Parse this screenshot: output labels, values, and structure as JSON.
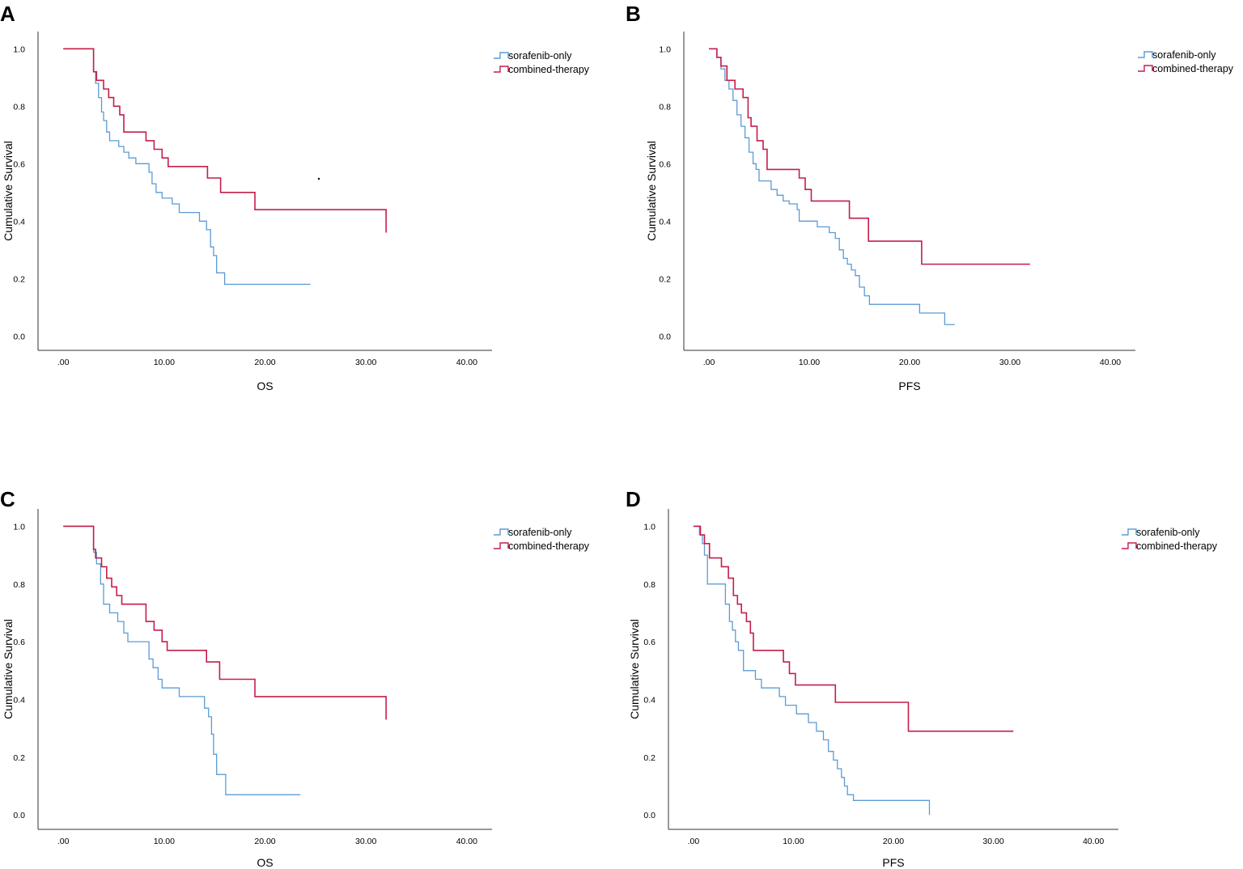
{
  "figure": {
    "panel_letters": [
      "A",
      "B",
      "C",
      "D"
    ]
  },
  "chart_data": [
    {
      "panel": "A",
      "type": "line",
      "step": true,
      "xlabel": "OS",
      "ylabel": "Cumulative Survival",
      "xlim": [
        -2.5,
        42.5
      ],
      "ylim": [
        -0.05,
        1.06
      ],
      "xticks": [
        ".00",
        "10.00",
        "20.00",
        "30.00",
        "40.00"
      ],
      "yticks": [
        "0.0",
        "0.2",
        "0.4",
        "0.6",
        "0.8",
        "1.0"
      ],
      "legend_position": "top-right",
      "series": [
        {
          "name": "sorafenib-only",
          "color": "#5b9bd5",
          "x": [
            0,
            3.0,
            3.2,
            3.5,
            3.8,
            4.0,
            4.3,
            4.6,
            5.0,
            5.5,
            6.0,
            6.5,
            7.2,
            8.5,
            8.8,
            9.2,
            9.8,
            10.8,
            11.5,
            13.5,
            14.2,
            14.6,
            14.9,
            15.2,
            16.0,
            24.5
          ],
          "y": [
            1.0,
            0.92,
            0.88,
            0.83,
            0.78,
            0.75,
            0.71,
            0.68,
            0.68,
            0.66,
            0.64,
            0.62,
            0.6,
            0.57,
            0.53,
            0.5,
            0.48,
            0.46,
            0.43,
            0.4,
            0.37,
            0.31,
            0.28,
            0.22,
            0.18,
            0.18
          ]
        },
        {
          "name": "combined-therapy",
          "color": "#c41e4a",
          "x": [
            0,
            3.0,
            3.3,
            4.0,
            4.5,
            5.0,
            5.6,
            6.0,
            8.2,
            9.0,
            9.8,
            10.4,
            14.3,
            15.6,
            19.0,
            32.0
          ],
          "y": [
            1.0,
            0.92,
            0.89,
            0.86,
            0.83,
            0.8,
            0.77,
            0.71,
            0.68,
            0.65,
            0.62,
            0.59,
            0.55,
            0.5,
            0.44,
            0.36
          ]
        }
      ]
    },
    {
      "panel": "B",
      "type": "line",
      "step": true,
      "xlabel": "PFS",
      "ylabel": "Cumulative Survival",
      "xlim": [
        -2.5,
        42.5
      ],
      "ylim": [
        -0.05,
        1.06
      ],
      "xticks": [
        ".00",
        "10.00",
        "20.00",
        "30.00",
        "40.00"
      ],
      "yticks": [
        "0.0",
        "0.2",
        "0.4",
        "0.6",
        "0.8",
        "1.0"
      ],
      "legend_position": "top-right",
      "series": [
        {
          "name": "sorafenib-only",
          "color": "#5b9bd5",
          "x": [
            0,
            0.8,
            1.2,
            1.6,
            2.0,
            2.4,
            2.8,
            3.2,
            3.6,
            4.0,
            4.4,
            4.7,
            5.0,
            6.2,
            6.8,
            7.4,
            8.0,
            8.8,
            9.0,
            10.8,
            12.0,
            12.6,
            13.0,
            13.4,
            13.8,
            14.2,
            14.6,
            15.0,
            15.5,
            16.0,
            17.0,
            21.0,
            23.5,
            24.5
          ],
          "y": [
            1.0,
            0.97,
            0.93,
            0.89,
            0.86,
            0.82,
            0.77,
            0.73,
            0.69,
            0.64,
            0.6,
            0.58,
            0.54,
            0.51,
            0.49,
            0.47,
            0.46,
            0.44,
            0.4,
            0.38,
            0.36,
            0.34,
            0.3,
            0.27,
            0.25,
            0.23,
            0.21,
            0.17,
            0.14,
            0.11,
            0.11,
            0.08,
            0.04,
            0.04
          ]
        },
        {
          "name": "combined-therapy",
          "color": "#c41e4a",
          "x": [
            0,
            0.8,
            1.2,
            1.8,
            2.6,
            3.4,
            3.9,
            4.2,
            4.8,
            5.4,
            5.8,
            9.0,
            9.6,
            10.2,
            14.0,
            15.9,
            21.2,
            32.0
          ],
          "y": [
            1.0,
            0.97,
            0.94,
            0.89,
            0.86,
            0.83,
            0.76,
            0.73,
            0.68,
            0.65,
            0.58,
            0.55,
            0.51,
            0.47,
            0.41,
            0.33,
            0.25,
            0.25
          ]
        }
      ]
    },
    {
      "panel": "C",
      "type": "line",
      "step": true,
      "xlabel": "OS",
      "ylabel": "Cumulative Survival",
      "xlim": [
        -2.5,
        42.5
      ],
      "ylim": [
        -0.05,
        1.06
      ],
      "xticks": [
        ".00",
        "10.00",
        "20.00",
        "30.00",
        "40.00"
      ],
      "yticks": [
        "0.0",
        "0.2",
        "0.4",
        "0.6",
        "0.8",
        "1.0"
      ],
      "legend_position": "top-right",
      "series": [
        {
          "name": "sorafenib-only",
          "color": "#5b9bd5",
          "x": [
            0,
            3.0,
            3.3,
            3.7,
            4.0,
            4.6,
            5.4,
            6.0,
            6.4,
            8.5,
            8.9,
            9.4,
            9.8,
            11.5,
            14.0,
            14.4,
            14.7,
            14.9,
            15.2,
            16.1,
            23.5
          ],
          "y": [
            1.0,
            0.91,
            0.87,
            0.8,
            0.73,
            0.7,
            0.67,
            0.63,
            0.6,
            0.54,
            0.51,
            0.47,
            0.44,
            0.41,
            0.37,
            0.34,
            0.28,
            0.21,
            0.14,
            0.07,
            0.07
          ]
        },
        {
          "name": "combined-therapy",
          "color": "#c41e4a",
          "x": [
            0,
            3.0,
            3.2,
            3.8,
            4.3,
            4.8,
            5.3,
            5.8,
            8.2,
            9.0,
            9.8,
            10.3,
            14.2,
            15.5,
            19.0,
            32.0
          ],
          "y": [
            1.0,
            0.92,
            0.89,
            0.86,
            0.82,
            0.79,
            0.76,
            0.73,
            0.67,
            0.64,
            0.6,
            0.57,
            0.53,
            0.47,
            0.41,
            0.33
          ]
        }
      ]
    },
    {
      "panel": "D",
      "type": "line",
      "step": true,
      "xlabel": "PFS",
      "ylabel": "Cumulative Survival",
      "xlim": [
        -2.5,
        42.5
      ],
      "ylim": [
        -0.05,
        1.06
      ],
      "xticks": [
        ".00",
        "10.00",
        "20.00",
        "30.00",
        "40.00"
      ],
      "yticks": [
        "0.0",
        "0.2",
        "0.4",
        "0.6",
        "0.8",
        "1.0"
      ],
      "legend_position": "top-right",
      "series": [
        {
          "name": "sorafenib-only",
          "color": "#5b9bd5",
          "x": [
            0,
            0.6,
            0.9,
            1.1,
            1.4,
            3.2,
            3.6,
            3.9,
            4.2,
            4.5,
            5.0,
            6.2,
            6.8,
            8.6,
            9.2,
            10.3,
            11.5,
            12.3,
            13.0,
            13.5,
            14.0,
            14.4,
            14.8,
            15.1,
            15.4,
            16.0,
            23.6
          ],
          "y": [
            1.0,
            0.97,
            0.94,
            0.9,
            0.8,
            0.73,
            0.67,
            0.64,
            0.6,
            0.57,
            0.5,
            0.47,
            0.44,
            0.41,
            0.38,
            0.35,
            0.32,
            0.29,
            0.26,
            0.22,
            0.19,
            0.16,
            0.13,
            0.1,
            0.07,
            0.05,
            0.0
          ]
        },
        {
          "name": "combined-therapy",
          "color": "#c41e4a",
          "x": [
            0,
            0.7,
            1.1,
            1.6,
            2.8,
            3.5,
            4.0,
            4.4,
            4.8,
            5.3,
            5.7,
            6.0,
            9.0,
            9.6,
            10.2,
            14.2,
            21.5,
            32.0
          ],
          "y": [
            1.0,
            0.97,
            0.94,
            0.89,
            0.86,
            0.82,
            0.76,
            0.73,
            0.7,
            0.67,
            0.63,
            0.57,
            0.53,
            0.49,
            0.45,
            0.39,
            0.29,
            0.29
          ]
        }
      ]
    }
  ]
}
